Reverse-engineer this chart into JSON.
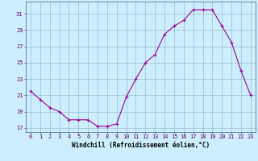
{
  "x": [
    0,
    1,
    2,
    3,
    4,
    5,
    6,
    7,
    8,
    9,
    10,
    11,
    12,
    13,
    14,
    15,
    16,
    17,
    18,
    19,
    20,
    21,
    22,
    23
  ],
  "y": [
    21.5,
    20.5,
    19.5,
    19.0,
    18.0,
    18.0,
    18.0,
    17.2,
    17.2,
    17.5,
    20.8,
    23.0,
    25.0,
    26.0,
    28.5,
    29.5,
    30.2,
    31.5,
    31.5,
    31.5,
    29.5,
    27.5,
    24.0,
    21.0
  ],
  "line_color": "#990099",
  "marker": "+",
  "bg_color": "#cceeff",
  "grid_color": "#99bbcc",
  "xlabel": "Windchill (Refroidissement éolien,°C)",
  "ylabel_ticks": [
    17,
    19,
    21,
    23,
    25,
    27,
    29,
    31
  ],
  "xticks": [
    0,
    1,
    2,
    3,
    4,
    5,
    6,
    7,
    8,
    9,
    10,
    11,
    12,
    13,
    14,
    15,
    16,
    17,
    18,
    19,
    20,
    21,
    22,
    23
  ],
  "xlim": [
    -0.5,
    23.5
  ],
  "ylim": [
    16.5,
    32.5
  ],
  "axis_fontsize": 5.5,
  "tick_fontsize": 5.0
}
